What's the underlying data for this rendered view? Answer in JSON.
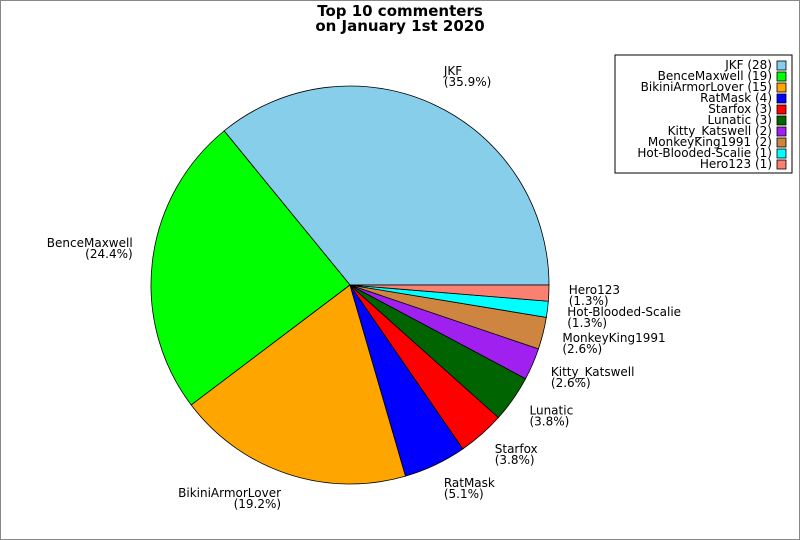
{
  "chart_data": {
    "type": "pie",
    "title": "Top 10 commenters",
    "subtitle": "on January 1st 2020",
    "categories": [
      "JKF",
      "BenceMaxwell",
      "BikiniArmorLover",
      "RatMask",
      "Starfox",
      "Lunatic",
      "Kitty_Katswell",
      "MonkeyKing1991",
      "Hot-Blooded-Scalie",
      "Hero123"
    ],
    "values": [
      35.9,
      24.4,
      19.2,
      5.1,
      3.8,
      3.8,
      2.6,
      2.6,
      1.3,
      1.3
    ],
    "value_labels": [
      "(35.9%)",
      "(24.4%)",
      "(19.2%)",
      "(5.1%)",
      "(3.8%)",
      "(3.8%)",
      "(2.6%)",
      "(2.6%)",
      "(1.3%)",
      "(1.3%)"
    ],
    "legend_labels": [
      "JKF (28)",
      "BenceMaxwell (19)",
      "BikiniArmorLover (15)",
      "RatMask (4)",
      "Starfox (3)",
      "Lunatic (3)",
      "Kitty_Katswell (2)",
      "MonkeyKing1991 (2)",
      "Hot-Blooded-Scalie (1)",
      "Hero123 (1)"
    ],
    "colors": [
      "#87ceeb",
      "#00ff00",
      "#ffa500",
      "#0000ff",
      "#ff0000",
      "#006400",
      "#a020f0",
      "#cd853f",
      "#00ffff",
      "#fa8072"
    ],
    "legend": "upper right"
  }
}
